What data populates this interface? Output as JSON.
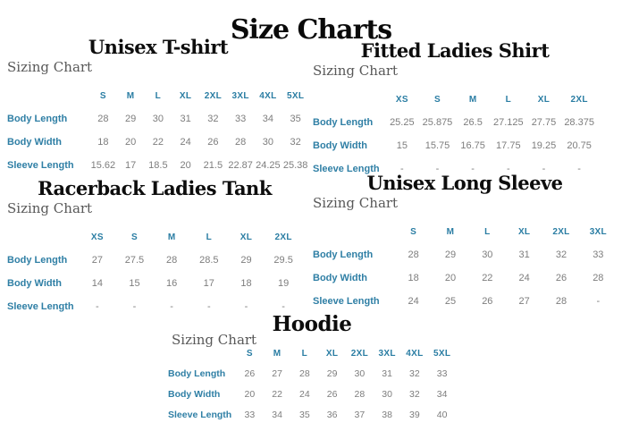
{
  "page_title": "Size Charts",
  "sizing_chart_label": "Sizing Chart",
  "colors": {
    "size_header": "#2a7da3",
    "row_label": "#2f7fa5",
    "value_text": "#7d7d7d",
    "title_text": "#0a0a0a",
    "sizing_label_text": "#585858"
  },
  "charts": [
    {
      "title": "Unisex T-shirt",
      "sizes": [
        "S",
        "M",
        "L",
        "XL",
        "2XL",
        "3XL",
        "4XL",
        "5XL"
      ],
      "rows": [
        {
          "label": "Body Length",
          "values": [
            "28",
            "29",
            "30",
            "31",
            "32",
            "33",
            "34",
            "35"
          ]
        },
        {
          "label": "Body Width",
          "values": [
            "18",
            "20",
            "22",
            "24",
            "26",
            "28",
            "30",
            "32"
          ]
        },
        {
          "label": "Sleeve Length",
          "values": [
            "15.62",
            "17",
            "18.5",
            "20",
            "21.5",
            "22.87",
            "24.25",
            "25.38"
          ]
        }
      ]
    },
    {
      "title": "Fitted Ladies Shirt",
      "sizes": [
        "XS",
        "S",
        "M",
        "L",
        "XL",
        "2XL"
      ],
      "rows": [
        {
          "label": "Body Length",
          "values": [
            "25.25",
            "25.875",
            "26.5",
            "27.125",
            "27.75",
            "28.375"
          ]
        },
        {
          "label": "Body Width",
          "values": [
            "15",
            "15.75",
            "16.75",
            "17.75",
            "19.25",
            "20.75"
          ]
        },
        {
          "label": "Sleeve Length",
          "values": [
            "-",
            "-",
            "-",
            "-",
            "-",
            "-"
          ]
        }
      ]
    },
    {
      "title": "Racerback Ladies Tank",
      "sizes": [
        "XS",
        "S",
        "M",
        "L",
        "XL",
        "2XL"
      ],
      "rows": [
        {
          "label": "Body Length",
          "values": [
            "27",
            "27.5",
            "28",
            "28.5",
            "29",
            "29.5"
          ]
        },
        {
          "label": "Body Width",
          "values": [
            "14",
            "15",
            "16",
            "17",
            "18",
            "19"
          ]
        },
        {
          "label": "Sleeve Length",
          "values": [
            "-",
            "-",
            "-",
            "-",
            "-",
            "-"
          ]
        }
      ]
    },
    {
      "title": "Unisex Long Sleeve",
      "sizes": [
        "S",
        "M",
        "L",
        "XL",
        "2XL",
        "3XL"
      ],
      "rows": [
        {
          "label": "Body Length",
          "values": [
            "28",
            "29",
            "30",
            "31",
            "32",
            "33"
          ]
        },
        {
          "label": "Body Width",
          "values": [
            "18",
            "20",
            "22",
            "24",
            "26",
            "28"
          ]
        },
        {
          "label": "Sleeve Length",
          "values": [
            "24",
            "25",
            "26",
            "27",
            "28",
            "-"
          ]
        }
      ]
    },
    {
      "title": "Hoodie",
      "sizes": [
        "S",
        "M",
        "L",
        "XL",
        "2XL",
        "3XL",
        "4XL",
        "5XL"
      ],
      "rows": [
        {
          "label": "Body Length",
          "values": [
            "26",
            "27",
            "28",
            "29",
            "30",
            "31",
            "32",
            "33"
          ]
        },
        {
          "label": "Body Width",
          "values": [
            "20",
            "22",
            "24",
            "26",
            "28",
            "30",
            "32",
            "34"
          ]
        },
        {
          "label": "Sleeve Length",
          "values": [
            "33",
            "34",
            "35",
            "36",
            "37",
            "38",
            "39",
            "40"
          ]
        }
      ]
    }
  ]
}
